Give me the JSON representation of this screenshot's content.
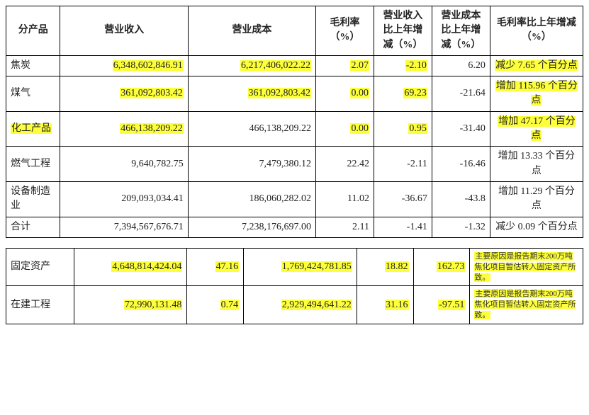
{
  "table_top": {
    "headers": {
      "product": "分产品",
      "revenue": "营业收入",
      "cost": "营业成本",
      "gross_margin": "毛利率（%）",
      "rev_yoy": "营业收入比上年增减（%）",
      "cost_yoy": "营业成本比上年增减（%）",
      "gm_yoy": "毛利率比上年增减（%）"
    },
    "rows": [
      {
        "product": "焦炭",
        "revenue": "6,348,602,846.91",
        "cost": "6,217,406,022.22",
        "gm": "2.07",
        "rev_yoy": "-2.10",
        "cost_yoy": "6.20",
        "gm_yoy": "减少 7.65 个百分点",
        "hl": {
          "revenue": true,
          "cost": true,
          "gm": true,
          "rev_yoy": true,
          "gm_yoy": true
        }
      },
      {
        "product": "煤气",
        "revenue": "361,092,803.42",
        "cost": "361,092,803.42",
        "gm": "0.00",
        "rev_yoy": "69.23",
        "cost_yoy": "-21.64",
        "gm_yoy": "增加 115.96 个百分点",
        "hl": {
          "revenue": true,
          "cost": true,
          "gm": true,
          "rev_yoy": true,
          "gm_yoy": true
        }
      },
      {
        "product": "化工产品",
        "revenue": "466,138,209.22",
        "cost": "466,138,209.22",
        "gm": "0.00",
        "rev_yoy": "0.95",
        "cost_yoy": "-31.40",
        "gm_yoy": "增加 47.17 个百分点",
        "hl": {
          "product": true,
          "revenue": true,
          "gm": true,
          "rev_yoy": true,
          "gm_yoy": true
        }
      },
      {
        "product": "燃气工程",
        "revenue": "9,640,782.75",
        "cost": "7,479,380.12",
        "gm": "22.42",
        "rev_yoy": "-2.11",
        "cost_yoy": "-16.46",
        "gm_yoy": "增加 13.33 个百分点",
        "hl": {}
      },
      {
        "product": "设备制造业",
        "revenue": "209,093,034.41",
        "cost": "186,060,282.02",
        "gm": "11.02",
        "rev_yoy": "-36.67",
        "cost_yoy": "-43.8",
        "gm_yoy": "增加 11.29 个百分点",
        "hl": {}
      },
      {
        "product": "合计",
        "revenue": "7,394,567,676.71",
        "cost": "7,238,176,697.00",
        "gm": "2.11",
        "rev_yoy": "-1.41",
        "cost_yoy": "-1.32",
        "gm_yoy": "减少 0.09 个百分点",
        "hl": {}
      }
    ]
  },
  "table_bottom": {
    "rows": [
      {
        "item": "固定资产",
        "v1": "4,648,814,424.04",
        "v2": "47.16",
        "v3": "1,769,424,781.85",
        "v4": "18.82",
        "v5": "162.73",
        "note": "主要原因是报告期末200万吨焦化项目暂估转入固定资产所致。",
        "hl": {
          "v1": true,
          "v2": true,
          "v3": true,
          "v4": true,
          "v5": true,
          "note": true
        }
      },
      {
        "item": "在建工程",
        "v1": "72,990,131.48",
        "v2": "0.74",
        "v3": "2,929,494,641.22",
        "v4": "31.16",
        "v5": "-97.51",
        "note": "主要原因是报告期末200万吨焦化项目暂估转入固定资产所致。",
        "hl": {
          "v1": true,
          "v2": true,
          "v3": true,
          "v4": true,
          "v5": true,
          "note": true
        }
      }
    ]
  },
  "style": {
    "highlight_color": "#fcff3a",
    "border_color": "#000000",
    "font_size_body": 14,
    "font_size_note": 11
  }
}
